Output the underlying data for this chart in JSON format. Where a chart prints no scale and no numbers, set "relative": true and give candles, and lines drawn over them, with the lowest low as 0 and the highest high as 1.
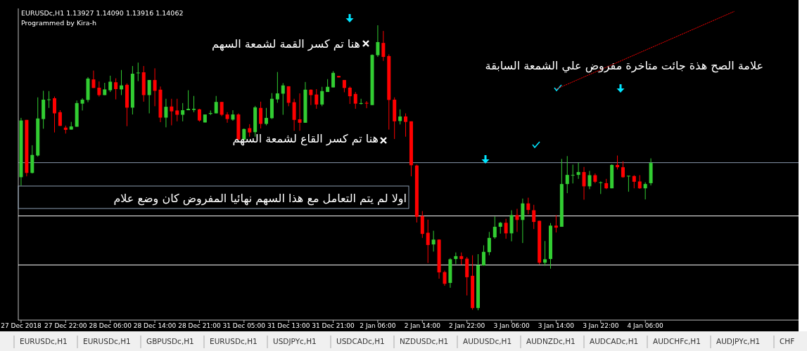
{
  "chart_data": {
    "type": "candlestick",
    "relative": true,
    "title": "EURUSDc,H1  1.13927 1.14090 1.13916 1.14062",
    "subtitle": "Programmed by Kira-h",
    "categories": [
      "27 Dec 2018",
      null,
      null,
      null,
      null,
      null,
      null,
      null,
      "27 Dec 22:00",
      null,
      null,
      null,
      null,
      null,
      null,
      null,
      "28 Dec 06:00",
      null,
      null,
      null,
      null,
      null,
      null,
      null,
      "28 Dec 14:00",
      null,
      null,
      null,
      null,
      null,
      null,
      null,
      "28 Dec 21:00",
      null,
      null,
      null,
      null,
      null,
      null,
      null,
      "31 Dec 05:00",
      null,
      null,
      null,
      null,
      null,
      null,
      null,
      "31 Dec 13:00",
      null,
      null,
      null,
      null,
      null,
      null,
      null,
      "31 Dec 21:00",
      null,
      null,
      null,
      null,
      null,
      null,
      null,
      "2 Jan 06:00",
      null,
      null,
      null,
      null,
      null,
      null,
      null,
      "2 Jan 14:00",
      null,
      null,
      null,
      null,
      null,
      null,
      null,
      "2 Jan 22:00",
      null,
      null,
      null,
      null,
      null,
      null,
      null,
      "3 Jan 06:00",
      null,
      null,
      null,
      null,
      null,
      null,
      null,
      "3 Jan 14:00",
      null,
      null,
      null,
      null,
      null,
      null,
      null,
      "3 Jan 22:00",
      null,
      null,
      null,
      null,
      null,
      null,
      null,
      "4 Jan 06:00",
      null,
      null,
      null,
      null,
      null,
      null,
      null,
      null,
      null,
      null,
      null,
      null,
      null,
      null,
      null,
      null,
      null,
      null,
      null,
      null,
      null,
      null,
      null,
      null,
      null,
      null,
      null
    ],
    "ohlc": [
      [
        0.467,
        0.675,
        0.437,
        0.666
      ],
      [
        0.668,
        0.668,
        0.47,
        0.482
      ],
      [
        0.482,
        0.579,
        0.48,
        0.545
      ],
      [
        0.543,
        0.747,
        0.539,
        0.673
      ],
      [
        0.671,
        0.77,
        0.637,
        0.739
      ],
      [
        0.738,
        0.769,
        0.71,
        0.74
      ],
      [
        0.744,
        0.75,
        0.624,
        0.691
      ],
      [
        0.695,
        0.702,
        0.647,
        0.647
      ],
      [
        0.641,
        0.648,
        0.62,
        0.633
      ],
      [
        0.634,
        0.661,
        0.634,
        0.645
      ],
      [
        0.644,
        0.736,
        0.644,
        0.727
      ],
      [
        0.725,
        0.744,
        0.701,
        0.739
      ],
      [
        0.738,
        0.818,
        0.73,
        0.813
      ],
      [
        0.81,
        0.841,
        0.78,
        0.78
      ],
      [
        0.781,
        0.803,
        0.75,
        0.755
      ],
      [
        0.755,
        0.798,
        0.755,
        0.775
      ],
      [
        0.772,
        0.823,
        0.766,
        0.802
      ],
      [
        0.8,
        0.814,
        0.74,
        0.776
      ],
      [
        0.775,
        0.843,
        0.755,
        0.789
      ],
      [
        0.791,
        0.796,
        0.646,
        0.711
      ],
      [
        0.711,
        0.857,
        0.687,
        0.83
      ],
      [
        0.832,
        0.869,
        0.804,
        0.834
      ],
      [
        0.835,
        0.857,
        0.732,
        0.755
      ],
      [
        0.755,
        0.808,
        0.691,
        0.808
      ],
      [
        0.808,
        0.849,
        0.716,
        0.77
      ],
      [
        0.774,
        0.785,
        0.66,
        0.676
      ],
      [
        0.676,
        0.742,
        0.642,
        0.714
      ],
      [
        0.715,
        0.742,
        0.649,
        0.698
      ],
      [
        0.701,
        0.742,
        0.663,
        0.686
      ],
      [
        0.686,
        0.727,
        0.663,
        0.702
      ],
      [
        0.702,
        0.772,
        0.702,
        0.707
      ],
      [
        0.703,
        0.752,
        0.695,
        0.707
      ],
      [
        0.705,
        0.707,
        0.662,
        0.666
      ],
      [
        0.659,
        0.687,
        0.659,
        0.687
      ],
      [
        0.689,
        0.701,
        0.685,
        0.692
      ],
      [
        0.691,
        0.752,
        0.691,
        0.731
      ],
      [
        0.731,
        0.731,
        0.681,
        0.686
      ],
      [
        0.687,
        0.695,
        0.658,
        0.671
      ],
      [
        0.669,
        0.702,
        0.665,
        0.687
      ],
      [
        0.687,
        0.691,
        0.599,
        0.599
      ],
      [
        0.599,
        0.638,
        0.597,
        0.636
      ],
      [
        0.639,
        0.653,
        0.609,
        0.624
      ],
      [
        0.625,
        0.717,
        0.609,
        0.712
      ],
      [
        0.71,
        0.732,
        0.638,
        0.654
      ],
      [
        0.654,
        0.71,
        0.649,
        0.675
      ],
      [
        0.674,
        0.762,
        0.671,
        0.742
      ],
      [
        0.74,
        0.836,
        0.728,
        0.761
      ],
      [
        0.76,
        0.797,
        0.686,
        0.789
      ],
      [
        0.786,
        0.786,
        0.716,
        0.728
      ],
      [
        0.73,
        0.742,
        0.63,
        0.668
      ],
      [
        0.67,
        0.761,
        0.63,
        0.658
      ],
      [
        0.658,
        0.801,
        0.658,
        0.774
      ],
      [
        0.774,
        0.775,
        0.72,
        0.755
      ],
      [
        0.757,
        0.776,
        0.707,
        0.722
      ],
      [
        0.722,
        0.784,
        0.716,
        0.769
      ],
      [
        0.766,
        0.811,
        0.766,
        0.784
      ],
      [
        0.782,
        0.839,
        0.782,
        0.833
      ],
      [
        0.822,
        0.822,
        0.817,
        0.817
      ],
      [
        0.808,
        0.808,
        0.765,
        0.78
      ],
      [
        0.781,
        0.785,
        0.724,
        0.751
      ],
      [
        0.759,
        0.766,
        0.707,
        0.725
      ],
      [
        0.724,
        0.742,
        0.722,
        0.727
      ],
      [
        0.728,
        0.734,
        0.709,
        0.725
      ],
      [
        0.72,
        0.898,
        0.72,
        0.896
      ],
      [
        0.895,
        1.0,
        0.889,
        0.941
      ],
      [
        0.938,
        0.98,
        0.875,
        0.889
      ],
      [
        0.892,
        0.898,
        0.634,
        0.738
      ],
      [
        0.739,
        0.747,
        0.601,
        0.663
      ],
      [
        0.664,
        0.705,
        0.652,
        0.68
      ],
      [
        0.68,
        0.691,
        0.609,
        0.661
      ],
      [
        0.663,
        0.663,
        0.47,
        0.509
      ],
      [
        0.508,
        0.511,
        0.308,
        0.328
      ],
      [
        0.331,
        0.348,
        0.254,
        0.268
      ],
      [
        0.272,
        0.318,
        0.166,
        0.229
      ],
      [
        0.231,
        0.279,
        0.206,
        0.248
      ],
      [
        0.248,
        0.249,
        0.111,
        0.133
      ],
      [
        0.134,
        0.139,
        0.086,
        0.093
      ],
      [
        0.096,
        0.183,
        0.079,
        0.179
      ],
      [
        0.18,
        0.203,
        0.162,
        0.19
      ],
      [
        0.19,
        0.203,
        0.16,
        0.18
      ],
      [
        0.181,
        0.187,
        0.052,
        0.116
      ],
      [
        0.121,
        0.193,
        0.002,
        0.008
      ],
      [
        0.008,
        0.197,
        0.0,
        0.158
      ],
      [
        0.157,
        0.228,
        0.157,
        0.205
      ],
      [
        0.204,
        0.275,
        0.193,
        0.254
      ],
      [
        0.256,
        0.329,
        0.251,
        0.293
      ],
      [
        0.293,
        0.31,
        0.269,
        0.307
      ],
      [
        0.307,
        0.321,
        0.251,
        0.27
      ],
      [
        0.27,
        0.351,
        0.242,
        0.334
      ],
      [
        0.334,
        0.356,
        0.275,
        0.317
      ],
      [
        0.317,
        0.392,
        0.236,
        0.375
      ],
      [
        0.375,
        0.395,
        0.337,
        0.352
      ],
      [
        0.351,
        0.37,
        0.285,
        0.31
      ],
      [
        0.314,
        0.314,
        0.161,
        0.167
      ],
      [
        0.167,
        0.243,
        0.156,
        0.179
      ],
      [
        0.18,
        0.306,
        0.146,
        0.297
      ],
      [
        0.297,
        0.334,
        0.273,
        0.29
      ],
      [
        0.293,
        0.531,
        0.293,
        0.443
      ],
      [
        0.443,
        0.541,
        0.411,
        0.475
      ],
      [
        0.473,
        0.511,
        0.445,
        0.475
      ],
      [
        0.475,
        0.518,
        0.461,
        0.485
      ],
      [
        0.485,
        0.503,
        0.388,
        0.435
      ],
      [
        0.435,
        0.489,
        0.425,
        0.474
      ],
      [
        0.474,
        0.48,
        0.446,
        0.451
      ],
      [
        0.448,
        0.452,
        0.408,
        0.449
      ],
      [
        0.446,
        0.461,
        0.425,
        0.428
      ],
      [
        0.428,
        0.512,
        0.428,
        0.51
      ],
      [
        0.51,
        0.543,
        0.494,
        0.502
      ],
      [
        0.502,
        0.523,
        0.465,
        0.467
      ],
      [
        0.47,
        0.472,
        0.416,
        0.472
      ],
      [
        0.471,
        0.474,
        0.428,
        0.451
      ],
      [
        0.452,
        0.474,
        0.426,
        0.428
      ],
      [
        0.428,
        0.449,
        0.389,
        0.443
      ],
      [
        0.446,
        0.533,
        0.438,
        0.517
      ],
      null,
      null,
      null,
      null,
      null,
      null,
      null,
      null,
      null,
      null,
      null,
      null,
      null,
      null,
      null,
      null,
      null,
      null,
      null,
      null,
      null,
      null,
      null,
      null,
      null,
      null
    ],
    "colors": [
      "#32cd32",
      "#ff0000",
      "#32cd32",
      "#32cd32",
      "#32cd32",
      "#32cd32",
      "#ff0000",
      "#ff0000",
      "#ff0000",
      "#32cd32",
      "#32cd32",
      "#32cd32",
      "#32cd32",
      "#ff0000",
      "#ff0000",
      "#32cd32",
      "#32cd32",
      "#ff0000",
      "#32cd32",
      "#ff0000",
      "#32cd32",
      "#32cd32",
      "#ff0000",
      "#32cd32",
      "#ff0000",
      "#ff0000",
      "#32cd32",
      "#ff0000",
      "#ff0000",
      "#32cd32",
      "#32cd32",
      "#32cd32",
      "#ff0000",
      "#32cd32",
      "#32cd32",
      "#32cd32",
      "#ff0000",
      "#ff0000",
      "#32cd32",
      "#ff0000",
      "#32cd32",
      "#ff0000",
      "#32cd32",
      "#ff0000",
      "#32cd32",
      "#32cd32",
      "#32cd32",
      "#32cd32",
      "#ff0000",
      "#ff0000",
      "#ff0000",
      "#32cd32",
      "#ff0000",
      "#ff0000",
      "#32cd32",
      "#32cd32",
      "#32cd32",
      "#ff0000",
      "#ff0000",
      "#ff0000",
      "#ff0000",
      "#32cd32",
      "#ff0000",
      "#32cd32",
      "#32cd32",
      "#ff0000",
      "#ff0000",
      "#ff0000",
      "#32cd32",
      "#ff0000",
      "#ff0000",
      "#ff0000",
      "#ff0000",
      "#ff0000",
      "#32cd32",
      "#ff0000",
      "#ff0000",
      "#32cd32",
      "#32cd32",
      "#ff0000",
      "#ff0000",
      "#ff0000",
      "#32cd32",
      "#32cd32",
      "#32cd32",
      "#32cd32",
      "#32cd32",
      "#ff0000",
      "#32cd32",
      "#ff0000",
      "#32cd32",
      "#ff0000",
      "#ff0000",
      "#ff0000",
      "#32cd32",
      "#32cd32",
      "#ff0000",
      "#32cd32",
      "#32cd32",
      "#32cd32",
      "#32cd32",
      "#ff0000",
      "#32cd32",
      "#ff0000",
      "#32cd32",
      "#ff0000",
      "#32cd32",
      "#ff0000",
      "#ff0000",
      "#32cd32",
      "#ff0000",
      "#ff0000",
      "#32cd32",
      "#32cd32",
      null,
      null,
      null,
      null,
      null,
      null,
      null,
      null,
      null,
      null,
      null,
      null,
      null,
      null,
      null,
      null,
      null,
      null,
      null,
      null,
      null,
      null,
      null,
      null,
      null,
      null
    ],
    "ref_lines": [
      {
        "axis": "y",
        "value": 0.518,
        "color": "#8a9bb0"
      },
      {
        "axis": "y",
        "value": 0.331,
        "color": "#ffffff"
      },
      {
        "axis": "y",
        "value": 0.159,
        "color": "#ffffff"
      }
    ],
    "annotations": [
      "هنا تم كسر القمة لشمعة السهم",
      "علامة الصح هذة جائت متاخرة مفروض علي الشمعة السابقة",
      "هنا تم كسر القاع لشمعة السهم",
      "اولا لم يتم التعامل مع هذا السهم نهائيا المفروض كان وضع علام",
      "EURUSDc,H1",
      "EURUSDc,H1",
      "GBPUSDc,H1",
      "EURUSDc,H1",
      "USDJPYc,H1",
      "USDCADc,H1",
      "NZDUSDc,H1",
      "AUDUSDc,H1",
      "AUDNZDc,H1",
      "AUDCADc,H1",
      "AUDCHFc,H1",
      "AUDJPYc,H1",
      "CHF"
    ],
    "series": [
      {
        "type": "line",
        "color": "#ff0000",
        "line_style": "dotted",
        "values": [
          null,
          null,
          null,
          null,
          null,
          null,
          null,
          null,
          null,
          null,
          null,
          null,
          null,
          null,
          null,
          null,
          null,
          null,
          null,
          null,
          null,
          null,
          null,
          null,
          null,
          null,
          null,
          null,
          null,
          null,
          null,
          null,
          null,
          null,
          null,
          null,
          null,
          null,
          null,
          null,
          null,
          null,
          null,
          null,
          null,
          null,
          null,
          null,
          null,
          null,
          null,
          null,
          null,
          null,
          null,
          null,
          null,
          null,
          null,
          null,
          null,
          null,
          null,
          null,
          null,
          null,
          null,
          null,
          null,
          null,
          null,
          null,
          null,
          null,
          null,
          null,
          null,
          null,
          null,
          null,
          null,
          null,
          null,
          null,
          null,
          null,
          null,
          null,
          null,
          null,
          null,
          null,
          null,
          null,
          null,
          null,
          0.776,
          null,
          null,
          null,
          null,
          null,
          null,
          null,
          null,
          null,
          null,
          null,
          null,
          null,
          null,
          null,
          null,
          null,
          null,
          null,
          null,
          null,
          null,
          null,
          null,
          null,
          null,
          null,
          null,
          null,
          null,
          null,
          1.049,
          null,
          null,
          null,
          null,
          null,
          null,
          null,
          null,
          null,
          null,
          null
        ]
      }
    ],
    "grid": false
  }
}
